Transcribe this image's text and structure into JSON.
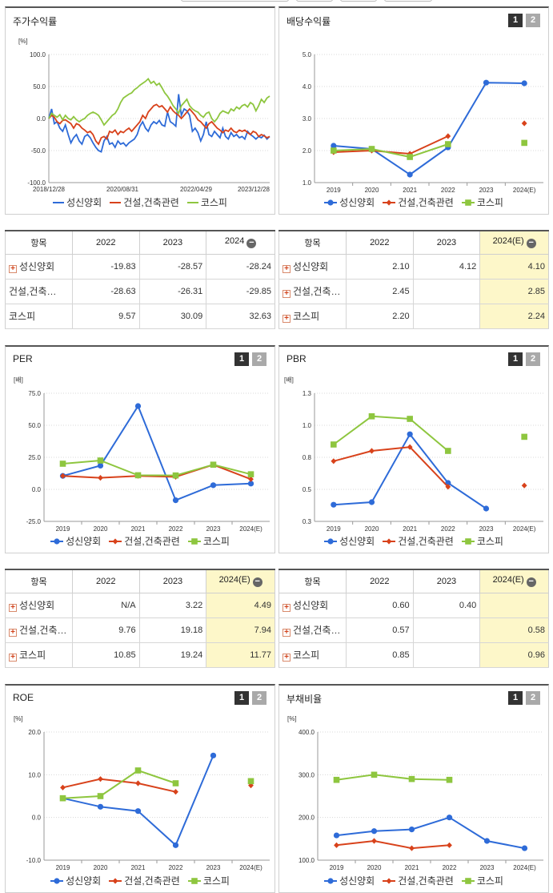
{
  "legend": [
    "성신양회",
    "건설,건축관련",
    "코스피"
  ],
  "colors": {
    "company": "#2e6bd8",
    "industry": "#d8421b",
    "kospi": "#8ec63f"
  },
  "panels": {
    "stock_return": {
      "title": "주가수익률"
    },
    "dividend": {
      "title": "배당수익률",
      "btn1": "1",
      "btn2": "2"
    },
    "per": {
      "title": "PER",
      "btn1": "1",
      "btn2": "2"
    },
    "pbr": {
      "title": "PBR",
      "btn1": "1",
      "btn2": "2"
    },
    "roe": {
      "title": "ROE",
      "btn1": "1",
      "btn2": "2"
    },
    "debt": {
      "title": "부채비율",
      "btn1": "1",
      "btn2": "2"
    }
  },
  "chart_data": [
    {
      "id": "stock_return",
      "type": "line",
      "unit": "[%]",
      "y_ticks": [
        "100.0",
        "50.0",
        "0.0",
        "-50.0",
        "-100.0"
      ],
      "ylim": [
        -100,
        100
      ],
      "x_ticks": [
        "2018/12/28",
        "2020/08/31",
        "2022/04/29",
        "2023/12/28"
      ],
      "series": [
        {
          "name": "성신양회",
          "values": [
            0,
            15,
            -8,
            -5,
            -15,
            -20,
            -10,
            -25,
            -38,
            -30,
            -25,
            -35,
            -40,
            -28,
            -25,
            -30,
            -38,
            -45,
            -50,
            -52,
            -35,
            -28,
            -40,
            -38,
            -45,
            -35,
            -40,
            -38,
            -43,
            -38,
            -35,
            -32,
            -25,
            -12,
            -5,
            -15,
            -20,
            -10,
            -5,
            -8,
            -3,
            -10,
            -12,
            10,
            -5,
            -8,
            -12,
            38,
            5,
            15,
            12,
            5,
            -20,
            -15,
            -22,
            -35,
            -25,
            -5,
            -25,
            -28,
            -20,
            -25,
            -30,
            -15,
            -28,
            -32,
            -22,
            -28,
            -25,
            -30,
            -28,
            -32,
            -20,
            -25,
            -28,
            -32,
            -28,
            -30,
            -26,
            -32,
            -28
          ]
        },
        {
          "name": "건설,건축관련",
          "values": [
            0,
            5,
            2,
            -5,
            -8,
            -3,
            -2,
            -5,
            -8,
            -15,
            -8,
            -10,
            -15,
            -18,
            -22,
            -20,
            -25,
            -35,
            -40,
            -30,
            -28,
            -32,
            -20,
            -22,
            -18,
            -25,
            -20,
            -22,
            -18,
            -15,
            -20,
            -15,
            -10,
            -5,
            5,
            0,
            10,
            15,
            20,
            22,
            18,
            20,
            15,
            10,
            18,
            12,
            8,
            5,
            0,
            5,
            10,
            15,
            10,
            5,
            -2,
            -5,
            -10,
            -15,
            -8,
            -5,
            -10,
            -15,
            -18,
            -22,
            -18,
            -20,
            -15,
            -20,
            -22,
            -18,
            -20,
            -18,
            -22,
            -25,
            -20,
            -22,
            -28,
            -25,
            -27,
            -30,
            -28
          ]
        },
        {
          "name": "코스피",
          "values": [
            0,
            8,
            5,
            2,
            6,
            -2,
            5,
            0,
            -2,
            3,
            -2,
            -5,
            -2,
            0,
            5,
            8,
            10,
            8,
            5,
            -2,
            -10,
            -5,
            0,
            5,
            8,
            15,
            25,
            32,
            35,
            38,
            40,
            45,
            48,
            52,
            55,
            58,
            62,
            55,
            58,
            52,
            55,
            48,
            40,
            35,
            28,
            20,
            15,
            8,
            20,
            25,
            30,
            20,
            15,
            12,
            10,
            5,
            2,
            8,
            10,
            0,
            -5,
            0,
            8,
            12,
            10,
            8,
            15,
            12,
            18,
            15,
            20,
            22,
            18,
            25,
            22,
            12,
            20,
            30,
            25,
            32,
            35
          ]
        }
      ]
    },
    {
      "id": "dividend",
      "type": "line",
      "unit": "",
      "y_ticks": [
        "5.0",
        "4.0",
        "3.0",
        "2.0",
        "1.0"
      ],
      "ylim": [
        1,
        5
      ],
      "x_ticks": [
        "2019",
        "2020",
        "2021",
        "2022",
        "2023",
        "2024(E)"
      ],
      "series": [
        {
          "name": "성신양회",
          "values": [
            2.15,
            2.05,
            1.25,
            2.1,
            4.12,
            4.1
          ]
        },
        {
          "name": "건설,건축관련",
          "values": [
            1.95,
            2.0,
            1.9,
            2.45,
            null,
            2.85
          ]
        },
        {
          "name": "코스피",
          "values": [
            2.0,
            2.05,
            1.8,
            2.2,
            null,
            2.24
          ]
        }
      ]
    },
    {
      "id": "per",
      "type": "line",
      "unit": "[배]",
      "y_ticks": [
        "75.0",
        "50.0",
        "25.0",
        "0.0",
        "-25.0"
      ],
      "ylim": [
        -25,
        75
      ],
      "x_ticks": [
        "2019",
        "2020",
        "2021",
        "2022",
        "2023",
        "2024(E)"
      ],
      "series": [
        {
          "name": "성신양회",
          "values": [
            10.5,
            18.5,
            65.0,
            -8.5,
            3.22,
            4.49
          ]
        },
        {
          "name": "건설,건축관련",
          "values": [
            10.5,
            9.0,
            10.5,
            9.76,
            19.18,
            7.94
          ]
        },
        {
          "name": "코스피",
          "values": [
            20.0,
            22.5,
            11.0,
            10.85,
            19.24,
            11.77
          ]
        }
      ]
    },
    {
      "id": "pbr",
      "type": "line",
      "unit": "[배]",
      "y_ticks": [
        "1.3",
        "1.0",
        "0.8",
        "0.5",
        "0.3"
      ],
      "ylim": [
        0.3,
        1.3
      ],
      "x_ticks": [
        "2019",
        "2020",
        "2021",
        "2022",
        "2023",
        "2024(E)"
      ],
      "series": [
        {
          "name": "성신양회",
          "values": [
            0.43,
            0.45,
            0.98,
            0.6,
            0.4,
            null
          ]
        },
        {
          "name": "건설,건축관련",
          "values": [
            0.77,
            0.85,
            0.88,
            0.57,
            null,
            0.58
          ]
        },
        {
          "name": "코스피",
          "values": [
            0.9,
            1.12,
            1.1,
            0.85,
            null,
            0.96
          ]
        }
      ]
    },
    {
      "id": "roe",
      "type": "line",
      "unit": "[%]",
      "y_ticks": [
        "20.0",
        "10.0",
        "0.0",
        "-10.0"
      ],
      "ylim": [
        -10,
        20
      ],
      "x_ticks": [
        "2019",
        "2020",
        "2021",
        "2022",
        "2023",
        "2024(E)"
      ],
      "series": [
        {
          "name": "성신양회",
          "values": [
            4.5,
            2.5,
            1.5,
            -6.5,
            14.5,
            null
          ]
        },
        {
          "name": "건설,건축관련",
          "values": [
            7.0,
            9.0,
            8.0,
            6.0,
            null,
            7.5
          ]
        },
        {
          "name": "코스피",
          "values": [
            4.5,
            5.0,
            11.0,
            8.0,
            null,
            8.5
          ]
        }
      ]
    },
    {
      "id": "debt",
      "type": "line",
      "unit": "[%]",
      "y_ticks": [
        "400.0",
        "300.0",
        "200.0",
        "100.0"
      ],
      "ylim": [
        100,
        400
      ],
      "x_ticks": [
        "2019",
        "2020",
        "2021",
        "2022",
        "2023",
        "2024(E)"
      ],
      "series": [
        {
          "name": "성신양회",
          "values": [
            158,
            168,
            172,
            200,
            145,
            128
          ]
        },
        {
          "name": "건설,건축관련",
          "values": [
            135,
            145,
            128,
            135,
            null,
            null
          ]
        },
        {
          "name": "코스피",
          "values": [
            288,
            300,
            290,
            288,
            null,
            null
          ]
        }
      ]
    }
  ],
  "tables": {
    "stock_return": {
      "header": [
        "항목",
        "2022",
        "2023",
        "2024"
      ],
      "rows": [
        {
          "label": "성신양회",
          "plus": true,
          "values": [
            "-19.83",
            "-28.57",
            "-28.24"
          ]
        },
        {
          "label": "건설,건축…",
          "plus": false,
          "values": [
            "-28.63",
            "-26.31",
            "-29.85"
          ]
        },
        {
          "label": "코스피",
          "plus": false,
          "values": [
            "9.57",
            "30.09",
            "32.63"
          ]
        }
      ]
    },
    "dividend": {
      "header": [
        "항목",
        "2022",
        "2023",
        "2024(E)"
      ],
      "rows": [
        {
          "label": "성신양회",
          "plus": true,
          "values": [
            "2.10",
            "4.12",
            "4.10"
          ]
        },
        {
          "label": "건설,건축…",
          "plus": true,
          "values": [
            "2.45",
            "",
            "2.85"
          ]
        },
        {
          "label": "코스피",
          "plus": true,
          "values": [
            "2.20",
            "",
            "2.24"
          ]
        }
      ]
    },
    "per": {
      "header": [
        "항목",
        "2022",
        "2023",
        "2024(E)"
      ],
      "rows": [
        {
          "label": "성신양회",
          "plus": true,
          "values": [
            "N/A",
            "3.22",
            "4.49"
          ]
        },
        {
          "label": "건설,건축…",
          "plus": true,
          "values": [
            "9.76",
            "19.18",
            "7.94"
          ]
        },
        {
          "label": "코스피",
          "plus": true,
          "values": [
            "10.85",
            "19.24",
            "11.77"
          ]
        }
      ]
    },
    "pbr": {
      "header": [
        "항목",
        "2022",
        "2023",
        "2024(E)"
      ],
      "rows": [
        {
          "label": "성신양회",
          "plus": true,
          "values": [
            "0.60",
            "0.40",
            ""
          ]
        },
        {
          "label": "건설,건축…",
          "plus": true,
          "values": [
            "0.57",
            "",
            "0.58"
          ]
        },
        {
          "label": "코스피",
          "plus": true,
          "values": [
            "0.85",
            "",
            "0.96"
          ]
        }
      ]
    }
  }
}
